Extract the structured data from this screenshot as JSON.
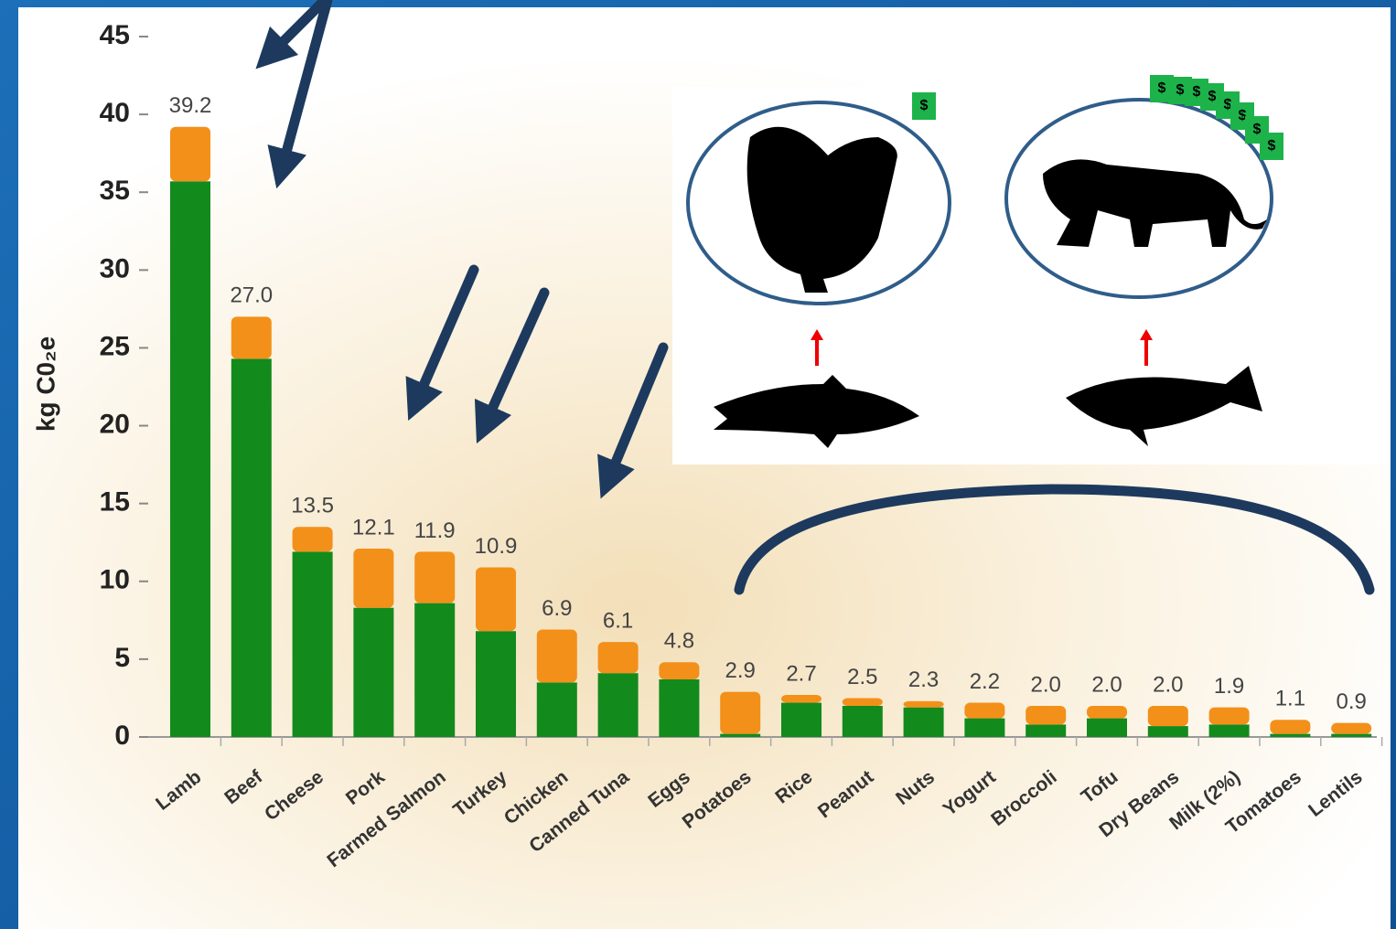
{
  "chart_data": {
    "type": "stacked_bar",
    "y_label": "kg C0₂e",
    "categories": [
      "Lamb",
      "Beef",
      "Cheese",
      "Pork",
      "Farmed Salmon",
      "Turkey",
      "Chicken",
      "Canned Tuna",
      "Eggs",
      "Potatoes",
      "Rice",
      "Peanut",
      "Nuts",
      "Yogurt",
      "Broccoli",
      "Tofu",
      "Dry Beans",
      "Milk (2%)",
      "Tomatoes",
      "Lentils"
    ],
    "series": [
      {
        "color": "#138a1c",
        "values": [
          35.7,
          24.3,
          11.9,
          8.3,
          8.6,
          6.8,
          3.5,
          4.1,
          3.7,
          0.2,
          2.2,
          2.0,
          1.9,
          1.2,
          0.8,
          1.2,
          0.7,
          0.8,
          0.2,
          0.2
        ]
      },
      {
        "color": "#f39019",
        "values": [
          3.5,
          2.7,
          1.6,
          3.8,
          3.3,
          4.1,
          3.4,
          2.0,
          1.1,
          2.7,
          0.5,
          0.5,
          0.4,
          1.0,
          1.2,
          0.8,
          1.3,
          1.1,
          0.9,
          0.7
        ]
      }
    ],
    "totals": [
      39.2,
      27.0,
      13.5,
      12.1,
      11.9,
      10.9,
      6.9,
      6.1,
      4.8,
      2.9,
      2.7,
      2.5,
      2.3,
      2.2,
      2.0,
      2.0,
      2.0,
      1.9,
      1.1,
      0.9
    ],
    "total_labels": [
      "39.2",
      "27.0",
      "13.5",
      "12.1",
      "11.9",
      "10.9",
      "6.9",
      "6.1",
      "4.8",
      "2.9",
      "2.7",
      "2.5",
      "2.3",
      "2.2",
      "2.0",
      "2.0",
      "2.0",
      "1.9",
      "1.1",
      "0.9"
    ],
    "ylim": [
      0,
      45
    ],
    "yticks": [
      0,
      5,
      10,
      15,
      20,
      25,
      30,
      35,
      40,
      45
    ],
    "annotation": "$"
  }
}
